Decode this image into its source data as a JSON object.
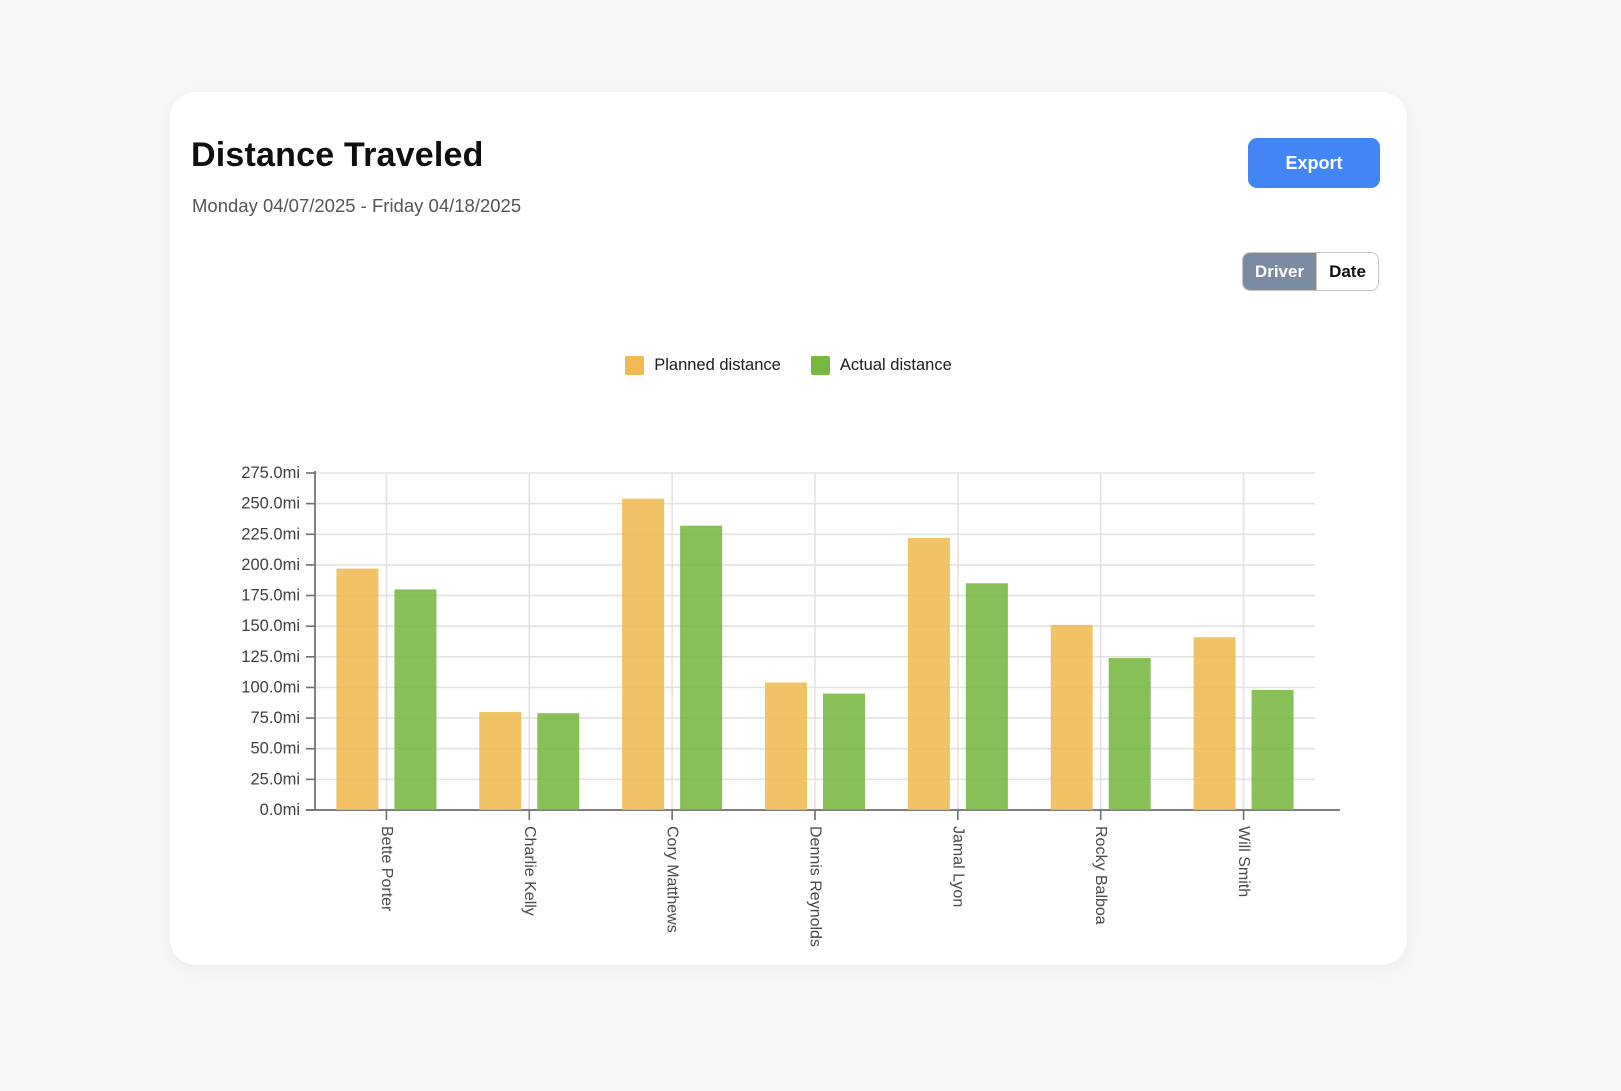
{
  "header": {
    "title": "Distance Traveled",
    "subtitle": "Monday 04/07/2025 - Friday 04/18/2025",
    "export_label": "Export"
  },
  "view_toggle": {
    "selected": "Driver",
    "options": [
      {
        "label": "Driver",
        "selected": true
      },
      {
        "label": "Date",
        "selected": false
      }
    ]
  },
  "chart_data": {
    "type": "bar",
    "categories": [
      "Bette Porter",
      "Charlie Kelly",
      "Cory Matthews",
      "Dennis Reynolds",
      "Jamal Lyon",
      "Rocky Balboa",
      "Will Smith"
    ],
    "series": [
      {
        "name": "Planned distance",
        "color": "#F0B951",
        "values": [
          197,
          80,
          254,
          104,
          222,
          151,
          141
        ]
      },
      {
        "name": "Actual distance",
        "color": "#77B63F",
        "values": [
          180,
          79,
          232,
          95,
          185,
          124,
          98
        ]
      }
    ],
    "y_axis": {
      "min": 0,
      "max": 275,
      "step": 25,
      "unit": "mi",
      "decimals": 1
    },
    "grid": true,
    "legend_position": "top",
    "x_label_rotation": 90
  },
  "colors": {
    "page_bg": "#F7F7F8",
    "card_bg": "#FFFFFF",
    "accent_blue": "#4285F4",
    "toggle_selected_bg": "#7B8BA1",
    "axis_line": "#6E6E6E",
    "grid_line": "#E2E2E2",
    "y_tick_label": "#3F3F3F",
    "x_tick_label": "#4A4A4A"
  }
}
